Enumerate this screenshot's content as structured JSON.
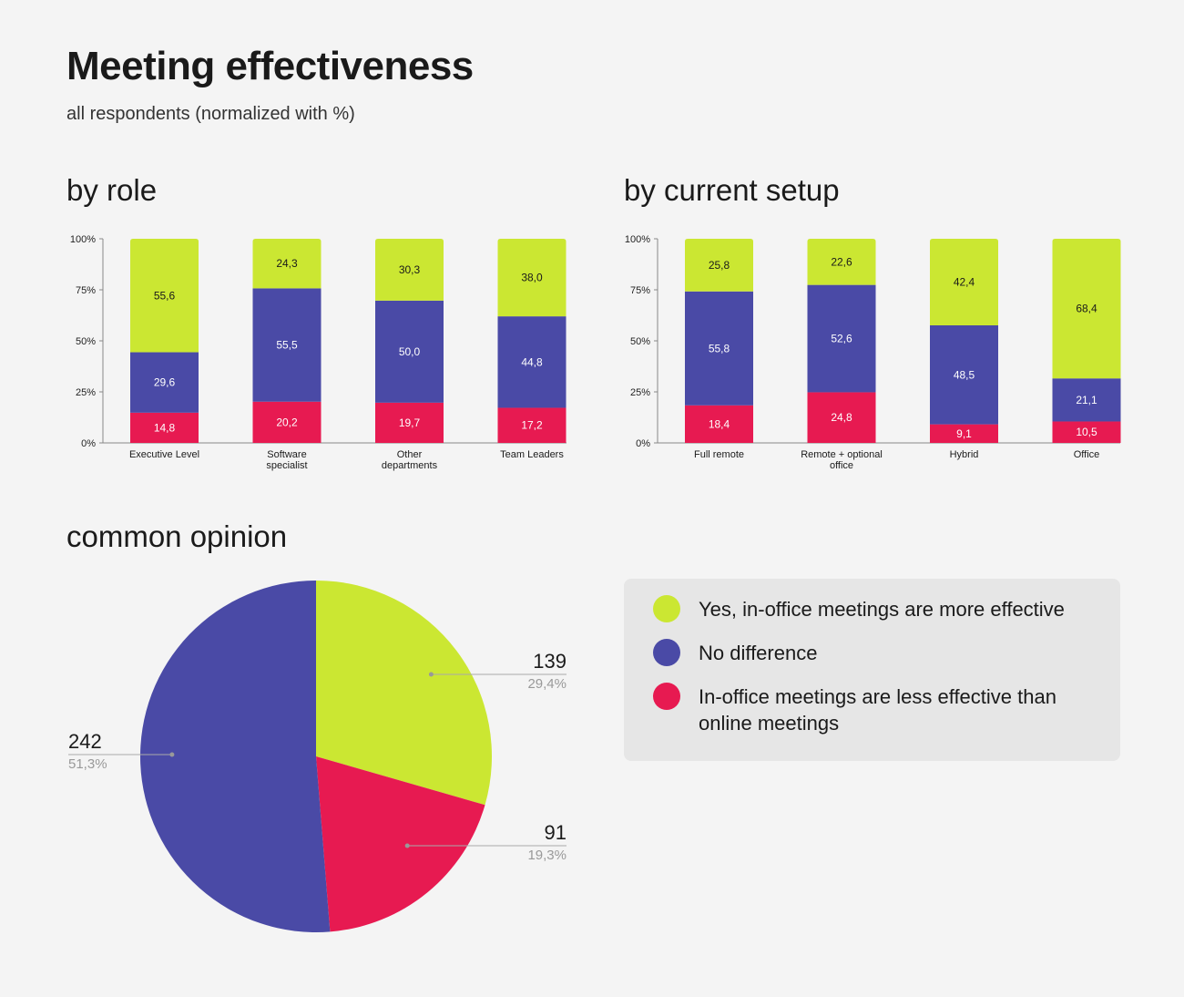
{
  "title": "Meeting effectiveness",
  "subtitle": "all respondents (normalized with %)",
  "sections": {
    "role": "by role",
    "setup": "by current setup",
    "opinion": "common opinion"
  },
  "colors": {
    "yes": "#cbe732",
    "no_difference": "#4a4aa6",
    "less": "#e71a51",
    "background": "#f4f4f4",
    "legend_bg": "#e6e6e6",
    "axis": "#888888"
  },
  "legend": {
    "yes": "Yes, in-office meetings are more effective",
    "no_difference": "No difference",
    "less": "In-office meetings are less effective than online meetings"
  },
  "chart_data": [
    {
      "type": "bar",
      "stacked": true,
      "title": "by role",
      "ylim": [
        0,
        100
      ],
      "yticks": [
        "0%",
        "25%",
        "50%",
        "75%",
        "100%"
      ],
      "categories": [
        [
          "Executive Level"
        ],
        [
          "Software",
          "specialist"
        ],
        [
          "Other",
          "departments"
        ],
        [
          "Team Leaders"
        ]
      ],
      "series": [
        {
          "name": "In-office meetings are less effective than online meetings",
          "key": "less",
          "values": [
            14.8,
            20.2,
            19.7,
            17.2
          ],
          "labels": [
            "14,8",
            "20,2",
            "19,7",
            "17,2"
          ]
        },
        {
          "name": "No difference",
          "key": "no_difference",
          "values": [
            29.6,
            55.5,
            50.0,
            44.8
          ],
          "labels": [
            "29,6",
            "55,5",
            "50,0",
            "44,8"
          ]
        },
        {
          "name": "Yes, in-office meetings are more effective",
          "key": "yes",
          "values": [
            55.6,
            24.3,
            30.3,
            38.0
          ],
          "labels": [
            "55,6",
            "24,3",
            "30,3",
            "38,0"
          ]
        }
      ]
    },
    {
      "type": "bar",
      "stacked": true,
      "title": "by current setup",
      "ylim": [
        0,
        100
      ],
      "yticks": [
        "0%",
        "25%",
        "50%",
        "75%",
        "100%"
      ],
      "categories": [
        [
          "Full remote"
        ],
        [
          "Remote + optional",
          "office"
        ],
        [
          "Hybrid"
        ],
        [
          "Office"
        ]
      ],
      "series": [
        {
          "name": "In-office meetings are less effective than online meetings",
          "key": "less",
          "values": [
            18.4,
            24.8,
            9.1,
            10.5
          ],
          "labels": [
            "18,4",
            "24,8",
            "9,1",
            "10,5"
          ]
        },
        {
          "name": "No difference",
          "key": "no_difference",
          "values": [
            55.8,
            52.6,
            48.5,
            21.1
          ],
          "labels": [
            "55,8",
            "52,6",
            "48,5",
            "21,1"
          ]
        },
        {
          "name": "Yes, in-office meetings are more effective",
          "key": "yes",
          "values": [
            25.8,
            22.6,
            42.4,
            68.4
          ],
          "labels": [
            "25,8",
            "22,6",
            "42,4",
            "68,4"
          ]
        }
      ]
    },
    {
      "type": "pie",
      "title": "common opinion",
      "slices": [
        {
          "key": "yes",
          "name": "Yes, in-office meetings are more effective",
          "value": 139,
          "label": "139",
          "percent": "29,4%"
        },
        {
          "key": "less",
          "name": "In-office meetings are less effective than online meetings",
          "value": 91,
          "label": "91",
          "percent": "19,3%"
        },
        {
          "key": "no_difference",
          "name": "No difference",
          "value": 242,
          "label": "242",
          "percent": "51,3%"
        }
      ]
    }
  ]
}
